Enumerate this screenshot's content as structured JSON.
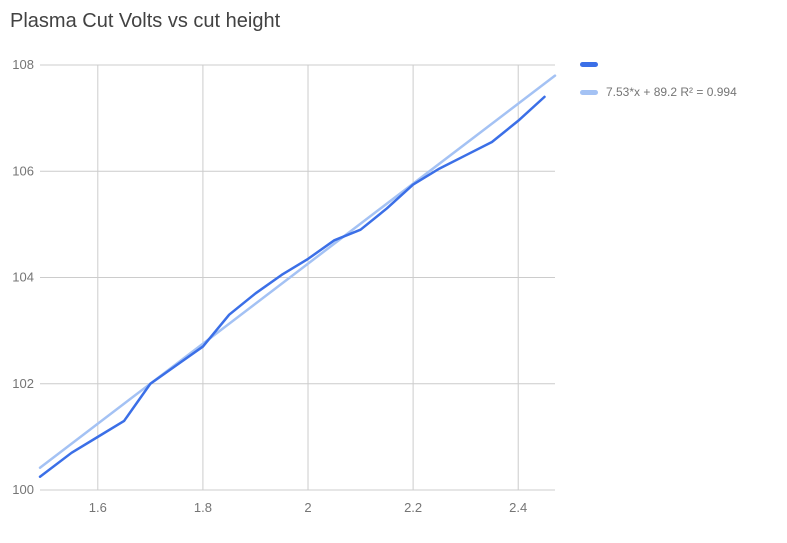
{
  "chart_data": {
    "type": "line",
    "title": "Plasma Cut Volts vs cut height",
    "xlabel": "",
    "ylabel": "",
    "grid": true,
    "legend_position": "right-top",
    "xlim": [
      1.49,
      2.47
    ],
    "ylim": [
      100,
      108
    ],
    "x_ticks": [
      {
        "v": 1.6,
        "label": "1.6"
      },
      {
        "v": 1.8,
        "label": "1.8"
      },
      {
        "v": 2,
        "label": "2"
      },
      {
        "v": 2.2,
        "label": "2.2"
      },
      {
        "v": 2.4,
        "label": "2.4"
      }
    ],
    "y_ticks": [
      {
        "v": 100,
        "label": "100"
      },
      {
        "v": 102,
        "label": "102"
      },
      {
        "v": 104,
        "label": "104"
      },
      {
        "v": 106,
        "label": "106"
      },
      {
        "v": 108,
        "label": "108"
      }
    ],
    "series": [
      {
        "name": "",
        "color": "#3b6fe7",
        "x": [
          1.49,
          1.55,
          1.6,
          1.65,
          1.7,
          1.75,
          1.8,
          1.85,
          1.9,
          1.95,
          2.0,
          2.05,
          2.1,
          2.15,
          2.2,
          2.25,
          2.3,
          2.35,
          2.4,
          2.45
        ],
        "y": [
          100.25,
          100.7,
          101.0,
          101.3,
          102.0,
          102.35,
          102.7,
          103.3,
          103.7,
          104.05,
          104.35,
          104.7,
          104.9,
          105.3,
          105.75,
          106.05,
          106.3,
          106.55,
          106.95,
          107.4
        ]
      }
    ],
    "trendline": {
      "label": "7.53*x + 89.2 R² = 0.994",
      "slope": 7.53,
      "intercept": 89.2,
      "r2": 0.994,
      "color": "#a4c2f4"
    },
    "grid_color": "#cccccc",
    "title_color": "#424242",
    "axis_text_color": "#757575"
  }
}
